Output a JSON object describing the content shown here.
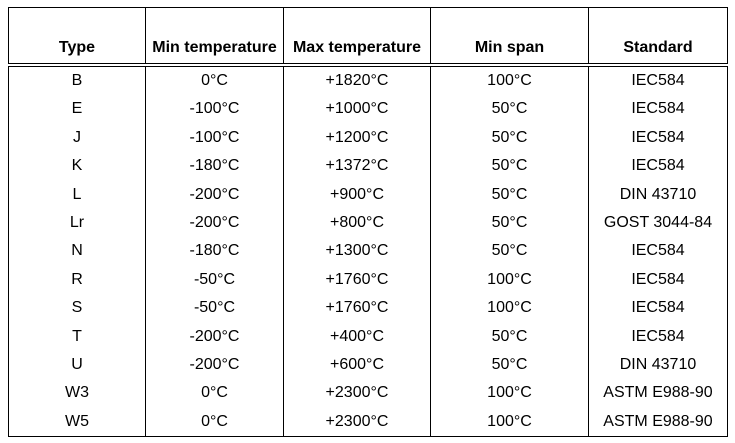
{
  "table": {
    "columns": [
      "Type",
      "Min temperature",
      "Max temperature",
      "Min span",
      "Standard"
    ],
    "rows": [
      [
        "B",
        "0°C",
        "+1820°C",
        "100°C",
        "IEC584"
      ],
      [
        "E",
        "-100°C",
        "+1000°C",
        "50°C",
        "IEC584"
      ],
      [
        "J",
        "-100°C",
        "+1200°C",
        "50°C",
        "IEC584"
      ],
      [
        "K",
        "-180°C",
        "+1372°C",
        "50°C",
        "IEC584"
      ],
      [
        "L",
        "-200°C",
        "+900°C",
        "50°C",
        "DIN 43710"
      ],
      [
        "Lr",
        "-200°C",
        "+800°C",
        "50°C",
        "GOST 3044-84"
      ],
      [
        "N",
        "-180°C",
        "+1300°C",
        "50°C",
        "IEC584"
      ],
      [
        "R",
        "-50°C",
        "+1760°C",
        "100°C",
        "IEC584"
      ],
      [
        "S",
        "-50°C",
        "+1760°C",
        "100°C",
        "IEC584"
      ],
      [
        "T",
        "-200°C",
        "+400°C",
        "50°C",
        "IEC584"
      ],
      [
        "U",
        "-200°C",
        "+600°C",
        "50°C",
        "DIN 43710"
      ],
      [
        "W3",
        "0°C",
        "+2300°C",
        "100°C",
        "ASTM E988-90"
      ],
      [
        "W5",
        "0°C",
        "+2300°C",
        "100°C",
        "ASTM E988-90"
      ]
    ]
  }
}
